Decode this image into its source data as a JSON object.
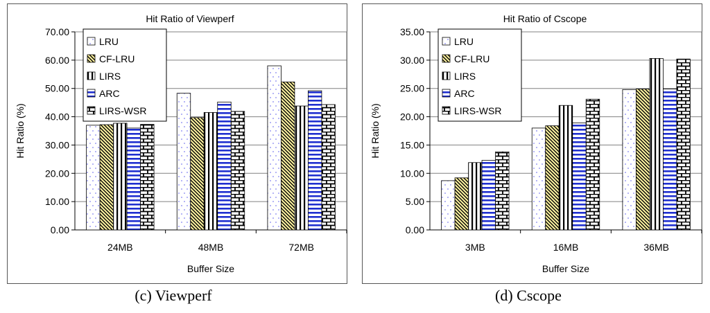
{
  "colors": {
    "axis": "#000000",
    "grid": "#808080",
    "bar_stroke": "#000000",
    "blue": "#1f2fd0",
    "yellow": "#fff3a0"
  },
  "chart_data": [
    {
      "type": "bar",
      "title": "Hit Ratio of Viewperf",
      "xlabel": "Buffer Size",
      "ylabel": "Hit Ratio (%)",
      "ylim": [
        0,
        70
      ],
      "yticks": [
        "0.00",
        "10.00",
        "20.00",
        "30.00",
        "40.00",
        "50.00",
        "60.00",
        "70.00"
      ],
      "categories": [
        "24MB",
        "48MB",
        "72MB"
      ],
      "legend_position": "top-left",
      "grid": true,
      "series": [
        {
          "name": "LRU",
          "pattern": "dots",
          "values": [
            37.0,
            48.3,
            58.0
          ]
        },
        {
          "name": "CF-LRU",
          "pattern": "diag",
          "values": [
            37.2,
            39.7,
            52.3
          ]
        },
        {
          "name": "LIRS",
          "pattern": "vert",
          "values": [
            37.7,
            41.5,
            43.8
          ]
        },
        {
          "name": "ARC",
          "pattern": "horiz",
          "values": [
            36.0,
            45.2,
            49.2
          ]
        },
        {
          "name": "LIRS-WSR",
          "pattern": "brick",
          "values": [
            37.3,
            41.9,
            44.3
          ]
        }
      ],
      "caption": "(c) Viewperf"
    },
    {
      "type": "bar",
      "title": "Hit Ratio of Cscope",
      "xlabel": "Buffer Size",
      "ylabel": "Hit Ratio (%)",
      "ylim": [
        0,
        35
      ],
      "yticks": [
        "0.00",
        "5.00",
        "10.00",
        "15.00",
        "20.00",
        "25.00",
        "30.00",
        "35.00"
      ],
      "categories": [
        "3MB",
        "16MB",
        "36MB"
      ],
      "legend_position": "top-left",
      "grid": true,
      "series": [
        {
          "name": "LRU",
          "pattern": "dots",
          "values": [
            8.7,
            18.0,
            24.8
          ]
        },
        {
          "name": "CF-LRU",
          "pattern": "diag",
          "values": [
            9.2,
            18.4,
            24.9
          ]
        },
        {
          "name": "LIRS",
          "pattern": "vert",
          "values": [
            11.9,
            22.0,
            30.3
          ]
        },
        {
          "name": "ARC",
          "pattern": "horiz",
          "values": [
            12.3,
            18.9,
            24.9
          ]
        },
        {
          "name": "LIRS-WSR",
          "pattern": "brick",
          "values": [
            13.8,
            23.1,
            30.2
          ]
        }
      ],
      "caption": "(d) Cscope"
    }
  ]
}
